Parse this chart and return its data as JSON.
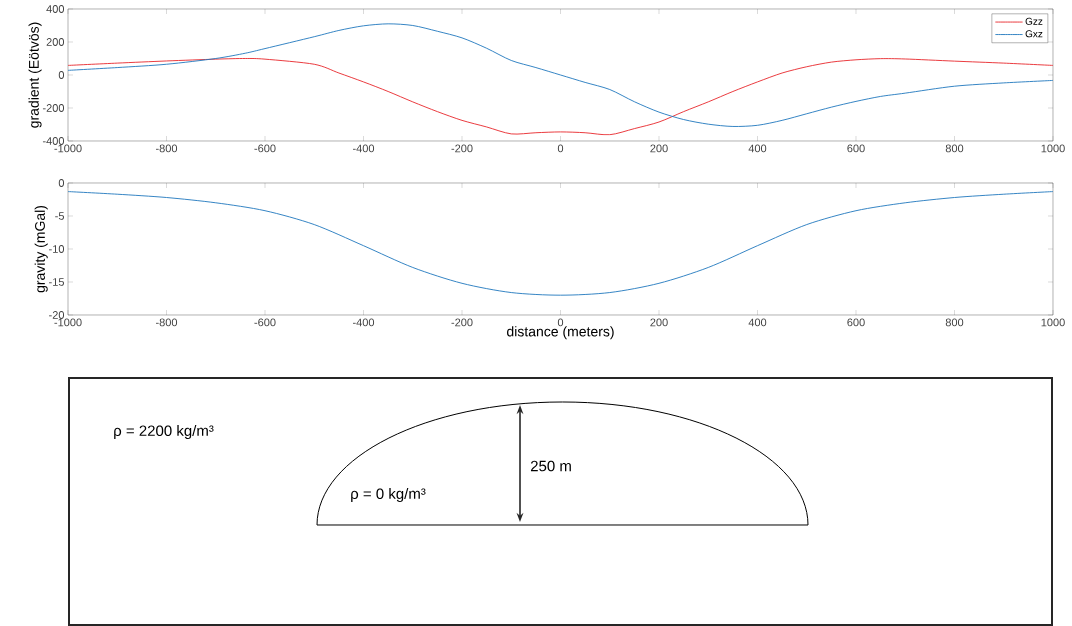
{
  "chart_data": [
    {
      "type": "line",
      "ylabel": "gradient (Eötvös)",
      "xlim": [
        -1000,
        1000
      ],
      "ylim": [
        -400,
        400
      ],
      "xticks": [
        -1000,
        -800,
        -600,
        -400,
        -200,
        0,
        200,
        400,
        600,
        800,
        1000
      ],
      "yticks": [
        -400,
        -200,
        0,
        200,
        400
      ],
      "x": [
        -1000,
        -900,
        -800,
        -700,
        -640,
        -600,
        -500,
        -450,
        -400,
        -350,
        -300,
        -250,
        -200,
        -150,
        -100,
        -50,
        0,
        50,
        100,
        150,
        200,
        250,
        300,
        350,
        400,
        450,
        500,
        550,
        600,
        650,
        700,
        800,
        900,
        1000
      ],
      "series": [
        {
          "name": "Gzz",
          "color": "#e8262a",
          "values": [
            58,
            72,
            85,
            96,
            100,
            96,
            65,
            12,
            -42,
            -100,
            -163,
            -222,
            -275,
            -315,
            -357,
            -350,
            -345,
            -350,
            -362,
            -325,
            -285,
            -222,
            -163,
            -100,
            -42,
            12,
            50,
            78,
            92,
            99,
            97,
            84,
            72,
            58
          ]
        },
        {
          "name": "Gxz",
          "color": "#1f77bd",
          "values": [
            28,
            45,
            65,
            100,
            132,
            160,
            232,
            270,
            298,
            310,
            300,
            265,
            225,
            162,
            88,
            45,
            0,
            -45,
            -88,
            -162,
            -225,
            -270,
            -298,
            -312,
            -305,
            -275,
            -235,
            -195,
            -160,
            -130,
            -110,
            -68,
            -48,
            -33
          ]
        }
      ],
      "legend": "top right",
      "marker": "none",
      "line_style": "solid"
    },
    {
      "type": "line",
      "ylabel": "gravity (mGal)",
      "xlabel": "distance (meters)",
      "xlim": [
        -1000,
        1000
      ],
      "ylim": [
        -20,
        0
      ],
      "xticks": [
        -1000,
        -800,
        -600,
        -400,
        -200,
        0,
        200,
        400,
        600,
        800,
        1000
      ],
      "yticks": [
        -20,
        -15,
        -10,
        -5,
        0
      ],
      "x": [
        -1000,
        -900,
        -800,
        -700,
        -600,
        -500,
        -400,
        -300,
        -200,
        -100,
        0,
        100,
        200,
        300,
        400,
        500,
        600,
        700,
        800,
        900,
        1000
      ],
      "series": [
        {
          "color": "#1f77bd",
          "values": [
            -1.3,
            -1.7,
            -2.2,
            -3.0,
            -4.2,
            -6.3,
            -9.5,
            -12.8,
            -15.2,
            -16.6,
            -17,
            -16.6,
            -15.2,
            -12.8,
            -9.5,
            -6.3,
            -4.2,
            -3.0,
            -2.2,
            -1.7,
            -1.3
          ]
        }
      ],
      "marker": "none",
      "line_style": "solid"
    },
    {
      "type": "other",
      "annotations": [
        "ρ = 2200 kg/m³",
        "250 m",
        "ρ = 0 kg/m³"
      ]
    }
  ]
}
